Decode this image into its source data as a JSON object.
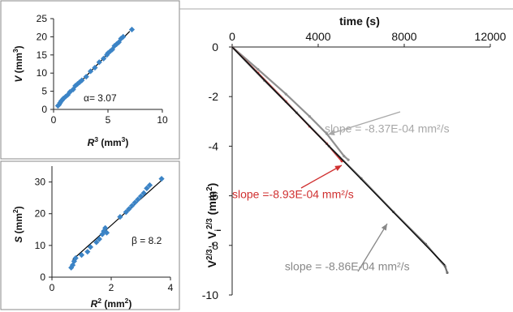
{
  "chart_data": [
    {
      "id": "v_vs_r3",
      "type": "scatter",
      "xlabel_parts": [
        "R",
        "3",
        " (mm",
        "3",
        ")"
      ],
      "ylabel_parts": [
        "V",
        " (mm",
        "3",
        ")"
      ],
      "xlim": [
        0,
        10
      ],
      "ylim": [
        0,
        25
      ],
      "xticks": [
        0,
        5,
        10
      ],
      "yticks": [
        0,
        5,
        10,
        15,
        20,
        25
      ],
      "annotation": "α= 3.07",
      "marker_color": "#3c84c6",
      "points": [
        [
          0.4,
          1.0
        ],
        [
          0.5,
          1.3
        ],
        [
          0.6,
          1.8
        ],
        [
          0.7,
          2.3
        ],
        [
          0.8,
          2.6
        ],
        [
          0.9,
          3.0
        ],
        [
          1.1,
          3.5
        ],
        [
          1.3,
          4.0
        ],
        [
          1.5,
          4.8
        ],
        [
          1.8,
          5.5
        ],
        [
          2.0,
          6.5
        ],
        [
          2.2,
          7.0
        ],
        [
          2.4,
          7.5
        ],
        [
          2.6,
          8.0
        ],
        [
          3.0,
          9.0
        ],
        [
          3.4,
          10.5
        ],
        [
          3.8,
          11.5
        ],
        [
          4.2,
          13.0
        ],
        [
          4.6,
          14.0
        ],
        [
          4.9,
          15.0
        ],
        [
          5.0,
          15.5
        ],
        [
          5.2,
          16.0
        ],
        [
          5.4,
          16.5
        ],
        [
          5.6,
          17.5
        ],
        [
          5.8,
          18.0
        ],
        [
          6.0,
          18.5
        ],
        [
          6.2,
          19.5
        ],
        [
          6.4,
          20.0
        ],
        [
          7.2,
          22.0
        ]
      ],
      "fit_line": [
        [
          0.4,
          1.2
        ],
        [
          7.0,
          21.5
        ]
      ]
    },
    {
      "id": "s_vs_r2",
      "type": "scatter",
      "xlabel_parts": [
        "R",
        "2",
        " (mm",
        "2",
        ")"
      ],
      "ylabel_parts": [
        "S",
        " (mm",
        "2",
        ")"
      ],
      "xlim": [
        0,
        4
      ],
      "ylim": [
        0,
        35
      ],
      "xticks": [
        0,
        2,
        4
      ],
      "yticks": [
        0,
        10,
        20,
        30
      ],
      "annotation": "β = 8.2",
      "marker_color": "#3c84c6",
      "points": [
        [
          0.65,
          3.0
        ],
        [
          0.7,
          3.8
        ],
        [
          0.75,
          5.0
        ],
        [
          0.8,
          6.0
        ],
        [
          1.0,
          7.0
        ],
        [
          1.2,
          8.0
        ],
        [
          1.3,
          9.5
        ],
        [
          1.5,
          11.0
        ],
        [
          1.6,
          12.0
        ],
        [
          1.7,
          13.5
        ],
        [
          1.75,
          14.5
        ],
        [
          1.8,
          15.5
        ],
        [
          1.85,
          14.0
        ],
        [
          2.3,
          19.0
        ],
        [
          2.5,
          20.5
        ],
        [
          2.6,
          21.5
        ],
        [
          2.7,
          22.5
        ],
        [
          2.8,
          23.5
        ],
        [
          2.9,
          24.5
        ],
        [
          3.0,
          25.5
        ],
        [
          3.1,
          26.5
        ],
        [
          3.2,
          28.0
        ],
        [
          3.3,
          29.0
        ],
        [
          3.7,
          31.0
        ]
      ],
      "fit_line": [
        [
          0.7,
          5.5
        ],
        [
          3.7,
          30.5
        ]
      ]
    },
    {
      "id": "volume_vs_time",
      "type": "line",
      "xlabel": "time (s)",
      "ylabel_parts": [
        "V",
        "2/3",
        " - V",
        "i",
        "2/3",
        " (mm",
        "2",
        ")"
      ],
      "xlim": [
        0,
        12000
      ],
      "ylim": [
        -10,
        0
      ],
      "xticks": [
        0,
        4000,
        8000,
        12000
      ],
      "yticks": [
        0,
        -2,
        -4,
        -6,
        -8,
        -10
      ],
      "series": [
        {
          "color": "#909090",
          "points": [
            [
              0,
              0
            ],
            [
              1200,
              -0.9
            ],
            [
              2500,
              -1.9
            ],
            [
              3600,
              -2.8
            ],
            [
              4400,
              -3.5
            ],
            [
              5200,
              -4.4
            ],
            [
              5400,
              -4.55
            ]
          ]
        },
        {
          "color": "#d03030",
          "points": [
            [
              0,
              0
            ],
            [
              1200,
              -1.05
            ],
            [
              2500,
              -2.2
            ],
            [
              3600,
              -3.2
            ],
            [
              4400,
              -3.9
            ],
            [
              5100,
              -4.6
            ]
          ]
        },
        {
          "color": "#707070",
          "points": [
            [
              0,
              0
            ],
            [
              1500,
              -1.35
            ],
            [
              3000,
              -2.65
            ],
            [
              4500,
              -4.0
            ],
            [
              6000,
              -5.3
            ],
            [
              7500,
              -6.65
            ],
            [
              9000,
              -7.95
            ],
            [
              9900,
              -8.85
            ],
            [
              10000,
              -9.1
            ]
          ]
        },
        {
          "color": "#000000",
          "points": [
            [
              0,
              0
            ],
            [
              9900,
              -8.8
            ]
          ]
        }
      ],
      "annotations": [
        {
          "text": "slope = -8.37E-04 mm²/s",
          "color": "#a8a8a8",
          "x": 4300,
          "y": -3.45
        },
        {
          "text": "slope =-8.93E-04 mm²/s",
          "color": "#d03030",
          "x": 0,
          "y": -6.1
        },
        {
          "text": "slope = -8.86E-04 mm²/s",
          "color": "#888888",
          "x": 2450,
          "y": -9.0
        }
      ]
    }
  ]
}
